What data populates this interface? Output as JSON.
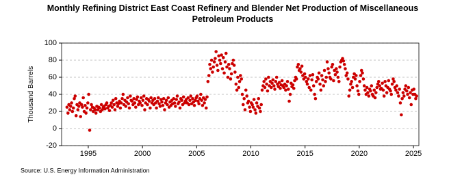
{
  "chart_data": {
    "type": "scatter",
    "title": "Monthly Refining District East Coast Refinery and Blender Net Production of Miscellaneous Petroleum Products",
    "y_label": "Thousand Barrels",
    "source": "Source: U.S. Energy Information Administration",
    "color": "#cc0000",
    "grid": true,
    "xlim": [
      1992.54,
      2025.5
    ],
    "ylim": [
      -20,
      100
    ],
    "xticks": [
      1995,
      2000,
      2005,
      2010,
      2015,
      2020,
      2025
    ],
    "yticks": [
      -20,
      0,
      20,
      40,
      60,
      80,
      100
    ],
    "x": [
      1993.04,
      1993.13,
      1993.21,
      1993.29,
      1993.38,
      1993.46,
      1993.54,
      1993.63,
      1993.71,
      1993.79,
      1993.88,
      1993.96,
      1994.04,
      1994.13,
      1994.21,
      1994.29,
      1994.38,
      1994.46,
      1994.54,
      1994.63,
      1994.71,
      1994.79,
      1994.88,
      1994.96,
      1995.04,
      1995.13,
      1995.21,
      1995.29,
      1995.38,
      1995.46,
      1995.54,
      1995.63,
      1995.71,
      1995.79,
      1995.88,
      1995.96,
      1996.04,
      1996.13,
      1996.21,
      1996.29,
      1996.38,
      1996.46,
      1996.54,
      1996.63,
      1996.71,
      1996.79,
      1996.88,
      1996.96,
      1997.04,
      1997.13,
      1997.21,
      1997.29,
      1997.38,
      1997.46,
      1997.54,
      1997.63,
      1997.71,
      1997.79,
      1997.88,
      1997.96,
      1998.04,
      1998.13,
      1998.21,
      1998.29,
      1998.38,
      1998.46,
      1998.54,
      1998.63,
      1998.71,
      1998.79,
      1998.88,
      1998.96,
      1999.04,
      1999.13,
      1999.21,
      1999.29,
      1999.38,
      1999.46,
      1999.54,
      1999.63,
      1999.71,
      1999.79,
      1999.88,
      1999.96,
      2000.04,
      2000.13,
      2000.21,
      2000.29,
      2000.38,
      2000.46,
      2000.54,
      2000.63,
      2000.71,
      2000.79,
      2000.88,
      2000.96,
      2001.04,
      2001.13,
      2001.21,
      2001.29,
      2001.38,
      2001.46,
      2001.54,
      2001.63,
      2001.71,
      2001.79,
      2001.88,
      2001.96,
      2002.04,
      2002.13,
      2002.21,
      2002.29,
      2002.38,
      2002.46,
      2002.54,
      2002.63,
      2002.71,
      2002.79,
      2002.88,
      2002.96,
      2003.04,
      2003.13,
      2003.21,
      2003.29,
      2003.38,
      2003.46,
      2003.54,
      2003.63,
      2003.71,
      2003.79,
      2003.88,
      2003.96,
      2004.04,
      2004.13,
      2004.21,
      2004.29,
      2004.38,
      2004.46,
      2004.54,
      2004.63,
      2004.71,
      2004.79,
      2004.88,
      2004.96,
      2005.04,
      2005.13,
      2005.21,
      2005.29,
      2005.38,
      2005.46,
      2005.54,
      2005.63,
      2005.71,
      2005.79,
      2005.88,
      2005.96,
      2006.04,
      2006.13,
      2006.21,
      2006.29,
      2006.38,
      2006.46,
      2006.54,
      2006.63,
      2006.71,
      2006.79,
      2006.88,
      2006.96,
      2007.04,
      2007.13,
      2007.21,
      2007.29,
      2007.38,
      2007.46,
      2007.54,
      2007.63,
      2007.71,
      2007.79,
      2007.88,
      2007.96,
      2008.04,
      2008.13,
      2008.21,
      2008.29,
      2008.38,
      2008.46,
      2008.54,
      2008.63,
      2008.71,
      2008.79,
      2008.88,
      2008.96,
      2009.04,
      2009.13,
      2009.21,
      2009.29,
      2009.38,
      2009.46,
      2009.54,
      2009.63,
      2009.71,
      2009.79,
      2009.88,
      2009.96,
      2010.04,
      2010.13,
      2010.21,
      2010.29,
      2010.38,
      2010.46,
      2010.54,
      2010.63,
      2010.71,
      2010.79,
      2010.88,
      2010.96,
      2011.04,
      2011.13,
      2011.21,
      2011.29,
      2011.38,
      2011.46,
      2011.54,
      2011.63,
      2011.71,
      2011.79,
      2011.88,
      2011.96,
      2012.04,
      2012.13,
      2012.21,
      2012.29,
      2012.38,
      2012.46,
      2012.54,
      2012.63,
      2012.71,
      2012.79,
      2012.88,
      2012.96,
      2013.04,
      2013.13,
      2013.21,
      2013.29,
      2013.38,
      2013.46,
      2013.54,
      2013.63,
      2013.71,
      2013.79,
      2013.88,
      2013.96,
      2014.04,
      2014.13,
      2014.21,
      2014.29,
      2014.38,
      2014.46,
      2014.54,
      2014.63,
      2014.71,
      2014.79,
      2014.88,
      2014.96,
      2015.04,
      2015.13,
      2015.21,
      2015.29,
      2015.38,
      2015.46,
      2015.54,
      2015.63,
      2015.71,
      2015.79,
      2015.88,
      2015.96,
      2016.04,
      2016.13,
      2016.21,
      2016.29,
      2016.38,
      2016.46,
      2016.54,
      2016.63,
      2016.71,
      2016.79,
      2016.88,
      2016.96,
      2017.04,
      2017.13,
      2017.21,
      2017.29,
      2017.38,
      2017.46,
      2017.54,
      2017.63,
      2017.71,
      2017.79,
      2017.88,
      2017.96,
      2018.04,
      2018.13,
      2018.21,
      2018.29,
      2018.38,
      2018.46,
      2018.54,
      2018.63,
      2018.71,
      2018.79,
      2018.88,
      2018.96,
      2019.04,
      2019.13,
      2019.21,
      2019.29,
      2019.38,
      2019.46,
      2019.54,
      2019.63,
      2019.71,
      2019.79,
      2019.88,
      2019.96,
      2020.04,
      2020.13,
      2020.21,
      2020.29,
      2020.38,
      2020.46,
      2020.54,
      2020.63,
      2020.71,
      2020.79,
      2020.88,
      2020.96,
      2021.04,
      2021.13,
      2021.21,
      2021.29,
      2021.38,
      2021.46,
      2021.54,
      2021.63,
      2021.71,
      2021.79,
      2021.88,
      2021.96,
      2022.04,
      2022.13,
      2022.21,
      2022.29,
      2022.38,
      2022.46,
      2022.54,
      2022.63,
      2022.71,
      2022.79,
      2022.88,
      2022.96,
      2023.04,
      2023.13,
      2023.21,
      2023.29,
      2023.38,
      2023.46,
      2023.54,
      2023.63,
      2023.71,
      2023.79,
      2023.88,
      2023.96,
      2024.04,
      2024.13,
      2024.21,
      2024.29,
      2024.38,
      2024.46,
      2024.54,
      2024.63,
      2024.71,
      2024.79,
      2024.88,
      2024.96,
      2025.04,
      2025.13,
      2025.21,
      2025.29
    ],
    "values": [
      25,
      18,
      28,
      22,
      26,
      30,
      20,
      24,
      35,
      38,
      15,
      28,
      22,
      26,
      30,
      14,
      28,
      25,
      36,
      20,
      27,
      18,
      24,
      30,
      40,
      -2,
      22,
      28,
      25,
      20,
      24,
      22,
      18,
      26,
      22,
      25,
      24,
      20,
      28,
      22,
      25,
      26,
      23,
      28,
      30,
      24,
      26,
      21,
      27,
      30,
      25,
      33,
      28,
      22,
      35,
      30,
      26,
      29,
      32,
      24,
      30,
      35,
      40,
      28,
      33,
      26,
      31,
      36,
      29,
      24,
      38,
      33,
      32,
      28,
      35,
      30,
      25,
      34,
      37,
      28,
      32,
      30,
      36,
      27,
      33,
      38,
      22,
      30,
      35,
      28,
      34,
      32,
      24,
      36,
      30,
      33,
      28,
      35,
      30,
      24,
      32,
      36,
      29,
      26,
      34,
      31,
      27,
      35,
      22,
      30,
      33,
      28,
      36,
      25,
      31,
      27,
      33,
      29,
      35,
      30,
      26,
      34,
      38,
      29,
      31,
      24,
      35,
      33,
      28,
      37,
      30,
      32,
      34,
      30,
      36,
      28,
      33,
      38,
      29,
      35,
      31,
      27,
      33,
      36,
      38,
      32,
      29,
      35,
      40,
      33,
      27,
      36,
      30,
      34,
      24,
      37,
      55,
      62,
      75,
      70,
      80,
      66,
      72,
      78,
      82,
      90,
      74,
      68,
      85,
      80,
      76,
      86,
      70,
      83,
      65,
      78,
      88,
      72,
      60,
      75,
      70,
      58,
      64,
      76,
      80,
      74,
      66,
      52,
      45,
      60,
      48,
      55,
      62,
      58,
      40,
      28,
      35,
      22,
      45,
      38,
      30,
      32,
      25,
      20,
      30,
      28,
      25,
      34,
      22,
      18,
      30,
      26,
      35,
      24,
      20,
      28,
      45,
      50,
      55,
      48,
      58,
      52,
      44,
      60,
      50,
      55,
      48,
      53,
      57,
      50,
      46,
      55,
      60,
      52,
      49,
      54,
      47,
      51,
      56,
      50,
      48,
      52,
      45,
      50,
      55,
      46,
      32,
      40,
      53,
      49,
      51,
      47,
      56,
      60,
      58,
      72,
      75,
      68,
      70,
      66,
      73,
      62,
      58,
      64,
      60,
      55,
      52,
      58,
      48,
      62,
      45,
      57,
      63,
      50,
      40,
      35,
      55,
      60,
      58,
      65,
      52,
      45,
      62,
      57,
      50,
      68,
      55,
      60,
      78,
      70,
      65,
      60,
      58,
      72,
      75,
      56,
      68,
      63,
      70,
      66,
      60,
      55,
      72,
      78,
      80,
      82,
      79,
      75,
      70,
      62,
      65,
      58,
      38,
      45,
      52,
      55,
      48,
      60,
      64,
      58,
      62,
      50,
      44,
      40,
      55,
      62,
      68,
      65,
      58,
      50,
      45,
      40,
      48,
      42,
      38,
      46,
      44,
      50,
      40,
      38,
      45,
      36,
      42,
      48,
      52,
      55,
      50,
      46,
      47,
      53,
      45,
      38,
      55,
      50,
      42,
      48,
      56,
      46,
      44,
      40,
      52,
      58,
      55,
      48,
      45,
      50,
      42,
      38,
      46,
      30,
      16,
      35,
      42,
      38,
      46,
      50,
      44,
      40,
      48,
      36,
      42,
      28,
      45,
      40,
      46,
      40,
      35,
      38
    ]
  }
}
